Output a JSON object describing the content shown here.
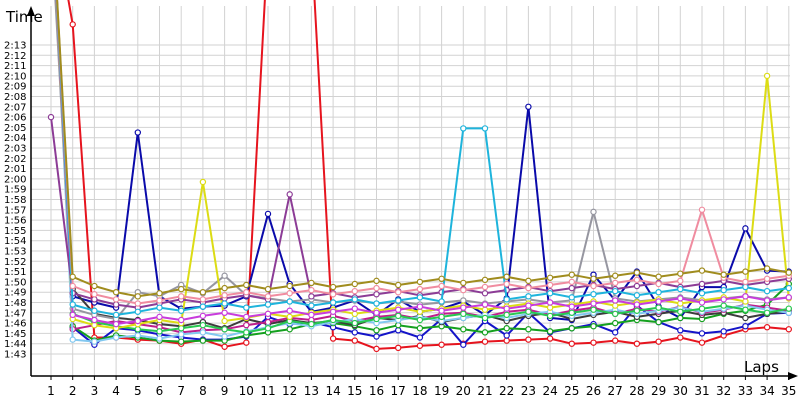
{
  "chart_data": {
    "type": "line",
    "xlabel": "Laps",
    "ylabel": "Time",
    "x_ticks": [
      "1",
      "2",
      "3",
      "4",
      "5",
      "6",
      "7",
      "8",
      "9",
      "10",
      "11",
      "12",
      "13",
      "14",
      "15",
      "16",
      "17",
      "18",
      "19",
      "20",
      "21",
      "22",
      "23",
      "24",
      "25",
      "26",
      "27",
      "28",
      "29",
      "30",
      "31",
      "32",
      "33",
      "34",
      "35"
    ],
    "y_ticks": [
      "1:43",
      "1:44",
      "1:45",
      "1:46",
      "1:47",
      "1:48",
      "1:49",
      "1:50",
      "1:51",
      "1:52",
      "1:53",
      "1:54",
      "1:55",
      "1:56",
      "1:57",
      "1:58",
      "1:59",
      "2:00",
      "2:01",
      "2:02",
      "2:03",
      "2:04",
      "2:05",
      "2:06",
      "2:07",
      "2:08",
      "2:09",
      "2:10",
      "2:11",
      "2:12",
      "2:13"
    ],
    "ylim_seconds": [
      102.5,
      135
    ],
    "grid": true,
    "series": [
      {
        "color": "#e6141e",
        "values": [
          147,
          135,
          104.6,
          104.6,
          104.4,
          104.3,
          104.0,
          104.4,
          103.7,
          104.1,
          143,
          143,
          143,
          104.5,
          104.3,
          103.5,
          103.6,
          103.8,
          103.9,
          104.0,
          104.2,
          104.3,
          104.4,
          104.5,
          104.0,
          104.1,
          104.3,
          104.0,
          104.2,
          104.6,
          104.1,
          104.8,
          105.4,
          105.6,
          105.4
        ]
      },
      {
        "color": "#1414c8",
        "values": [
          148,
          105.6,
          103.9,
          105.5,
          105.3,
          104.9,
          104.6,
          104.4,
          104.4,
          104.7,
          106.6,
          105.9,
          106.1,
          105.6,
          105.1,
          104.7,
          105.3,
          104.6,
          106.4,
          103.9,
          106.2,
          104.8,
          107.0,
          105.1,
          105.5,
          105.9,
          105.1,
          107.7,
          106.1,
          105.3,
          105.0,
          105.2,
          105.7,
          106.9,
          107.0
        ]
      },
      {
        "color": "#0a0aaa",
        "values": [
          148,
          108.6,
          108.0,
          107.5,
          124.5,
          108.6,
          107.4,
          107.6,
          107.7,
          108.6,
          116.6,
          109.8,
          107.1,
          107.5,
          108.2,
          106.8,
          108.3,
          107.1,
          107.4,
          108.1,
          106.8,
          108.4,
          127.0,
          106.5,
          106.3,
          110.7,
          108.2,
          111.0,
          107.6,
          106.5,
          109.5,
          109.5,
          115.2,
          111.1,
          111.0
        ]
      },
      {
        "color": "#14a01e",
        "values": [
          149,
          105.7,
          104.3,
          104.8,
          104.6,
          104.3,
          104.2,
          104.3,
          104.3,
          104.8,
          105.1,
          105.4,
          105.9,
          106.0,
          105.7,
          105.3,
          105.8,
          105.5,
          105.7,
          105.4,
          105.1,
          105.5,
          105.4,
          105.2,
          105.5,
          105.7,
          106.0,
          106.3,
          106.1,
          106.5,
          106.4,
          106.9,
          107.2,
          107.8,
          109.8
        ]
      },
      {
        "color": "#3c3c3c",
        "values": [
          148,
          109.3,
          106.9,
          106.5,
          106.3,
          105.9,
          105.7,
          106.1,
          105.5,
          106.4,
          105.9,
          106.3,
          106.0,
          106.2,
          105.8,
          106.5,
          106.3,
          106.7,
          106.1,
          106.5,
          106.8,
          106.2,
          106.7,
          107.0,
          106.4,
          106.8,
          107.1,
          106.6,
          106.9,
          107.2,
          106.8,
          107.0,
          106.5,
          106.9,
          107.1
        ]
      },
      {
        "color": "#be1e8c",
        "values": [
          149,
          105.4,
          105.8,
          106.2,
          105.9,
          105.6,
          105.1,
          105.3,
          105.4,
          105.8,
          106.1,
          106.5,
          106.3,
          106.7,
          106.2,
          106.6,
          106.8,
          106.4,
          106.9,
          107.0,
          106.6,
          107.1,
          107.3,
          106.8,
          107.2,
          107.5,
          106.9,
          107.4,
          107.1,
          107.6,
          107.0,
          107.3,
          107.8,
          107.5,
          107.2
        ]
      },
      {
        "color": "#82c8f0",
        "values": [
          148,
          104.4,
          104.2,
          104.6,
          104.8,
          104.5,
          104.9,
          105.1,
          104.7,
          105.2,
          105.6,
          106.0,
          105.7,
          106.1,
          106.4,
          106.0,
          106.3,
          106.6,
          106.2,
          106.5,
          106.8,
          106.5,
          106.9,
          107.1,
          106.7,
          107.0,
          107.3,
          106.9,
          107.2,
          107.5,
          107.1,
          107.4,
          107.7,
          107.3,
          107.0
        ]
      },
      {
        "color": "#28c850",
        "values": [
          148,
          106.9,
          106.1,
          105.7,
          105.4,
          105.2,
          105.5,
          105.8,
          105.4,
          105.1,
          105.5,
          106.2,
          105.9,
          106.3,
          106.0,
          106.4,
          106.7,
          106.3,
          106.6,
          106.9,
          106.5,
          106.8,
          107.1,
          106.7,
          107.0,
          107.3,
          106.9,
          107.2,
          107.5,
          107.1,
          107.4,
          107.7,
          107.3,
          107.0,
          107.4
        ]
      },
      {
        "color": "#9696a0",
        "values": [
          145,
          107.4,
          106.8,
          106.4,
          109.0,
          108.6,
          109.7,
          108.9,
          110.6,
          108.7,
          108.4,
          108.1,
          108.3,
          108.0,
          108.2,
          107.9,
          108.1,
          107.8,
          108.0,
          108.2,
          107.9,
          108.1,
          108.3,
          108.0,
          108.2,
          116.8,
          108.4,
          108.1,
          108.3,
          108.5,
          108.2,
          108.4,
          108.6,
          108.3,
          108.5
        ]
      },
      {
        "color": "#dcdc14",
        "values": [
          148,
          106.4,
          105.8,
          105.5,
          105.9,
          106.3,
          106.0,
          119.7,
          106.2,
          106.5,
          106.9,
          106.6,
          107.0,
          107.3,
          106.9,
          107.2,
          107.5,
          107.1,
          107.4,
          107.7,
          107.3,
          107.6,
          107.9,
          107.5,
          107.8,
          108.1,
          107.7,
          108.0,
          108.3,
          107.9,
          108.2,
          108.5,
          108.1,
          130.0,
          108.4
        ]
      },
      {
        "color": "#c83cdc",
        "values": [
          148,
          106.8,
          106.3,
          105.9,
          106.2,
          106.6,
          106.3,
          106.7,
          107.0,
          106.6,
          106.9,
          107.2,
          106.8,
          107.1,
          107.4,
          107.0,
          107.3,
          107.6,
          107.2,
          107.5,
          107.8,
          107.4,
          107.7,
          108.0,
          107.6,
          107.9,
          108.2,
          107.8,
          108.1,
          108.4,
          108.0,
          108.3,
          108.6,
          108.2,
          108.5
        ]
      },
      {
        "color": "#8c3c96",
        "values": [
          126,
          108.9,
          108.3,
          107.8,
          107.5,
          107.9,
          108.3,
          108.0,
          108.4,
          108.7,
          108.3,
          118.5,
          108.6,
          108.9,
          108.5,
          108.8,
          109.1,
          108.7,
          109.0,
          109.3,
          108.9,
          109.2,
          109.5,
          109.1,
          109.4,
          109.7,
          109.3,
          109.6,
          109.9,
          109.5,
          109.8,
          110.1,
          109.7,
          110.0,
          110.3
        ]
      },
      {
        "color": "#1eb4dc",
        "values": [
          148,
          107.8,
          107.2,
          106.8,
          107.1,
          107.5,
          107.2,
          107.6,
          107.9,
          107.5,
          107.8,
          108.1,
          107.7,
          108.0,
          108.3,
          107.9,
          108.2,
          108.5,
          108.1,
          124.9,
          124.9,
          108.3,
          108.6,
          108.9,
          108.5,
          108.8,
          109.1,
          108.7,
          109.0,
          109.3,
          108.9,
          109.2,
          109.5,
          109.1,
          109.4
        ]
      },
      {
        "color": "#f08ca0",
        "values": [
          148,
          109.6,
          108.8,
          108.3,
          107.9,
          108.2,
          108.6,
          108.3,
          108.7,
          109.0,
          108.6,
          108.9,
          109.2,
          108.8,
          109.1,
          109.4,
          109.0,
          109.3,
          109.6,
          109.2,
          109.5,
          109.8,
          109.4,
          109.7,
          110.0,
          109.6,
          109.9,
          110.2,
          109.8,
          110.1,
          117.0,
          110.4,
          110.0,
          110.3,
          110.6
        ]
      },
      {
        "color": "#a08c1e",
        "values": [
          148,
          110.5,
          109.6,
          109.0,
          108.6,
          108.9,
          109.3,
          109.0,
          109.4,
          109.7,
          109.3,
          109.6,
          109.9,
          109.5,
          109.8,
          110.1,
          109.7,
          110.0,
          110.3,
          109.9,
          110.2,
          110.5,
          110.1,
          110.4,
          110.7,
          110.3,
          110.6,
          110.9,
          110.5,
          110.8,
          111.1,
          110.7,
          111.0,
          111.3,
          110.9
        ]
      }
    ]
  }
}
